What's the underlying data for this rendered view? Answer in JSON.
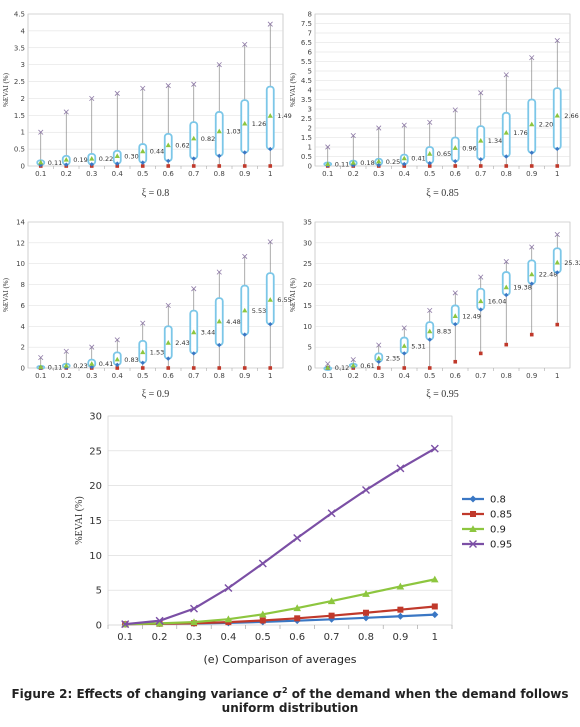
{
  "figure_caption_line1": "Figure 2: Effects of changing variance σ",
  "figure_caption_sup": "2",
  "figure_caption_line1_end": " of the demand when the demand follows",
  "figure_caption_line2": "uniform distribution",
  "colors": {
    "series_0_8": "#3a77c4",
    "series_0_85": "#c0392b",
    "series_0_9": "#8dc63f",
    "series_0_95": "#7b4fa5",
    "box_edge": "#7cc7e8",
    "whisker": "#888888",
    "max_marker": "#8e7aa6"
  },
  "chart_data": [
    {
      "type": "box",
      "subtitle": "ξ = 0.8",
      "ylabel": "%EVAI (%)",
      "categories": [
        "0.1",
        "0.2",
        "0.3",
        "0.4",
        "0.5",
        "0.6",
        "0.7",
        "0.8",
        "0.9",
        "1"
      ],
      "ylim": [
        0,
        4.5
      ],
      "yticks": [
        "0",
        "0.5",
        "1",
        "1.5",
        "2",
        "2.5",
        "3",
        "3.5",
        "4",
        "4.5"
      ],
      "min": [
        0,
        0,
        0,
        0,
        0,
        0,
        0,
        0,
        0,
        0
      ],
      "q1": [
        0.03,
        0.04,
        0.05,
        0.07,
        0.1,
        0.15,
        0.22,
        0.3,
        0.4,
        0.5
      ],
      "mean": [
        0.11,
        0.19,
        0.22,
        0.3,
        0.44,
        0.62,
        0.82,
        1.03,
        1.26,
        1.49
      ],
      "q3": [
        0.17,
        0.3,
        0.36,
        0.45,
        0.65,
        0.95,
        1.3,
        1.6,
        1.95,
        2.35
      ],
      "max": [
        1.0,
        1.6,
        2.0,
        2.15,
        2.3,
        2.38,
        2.42,
        3.0,
        3.6,
        4.2
      ],
      "mean_labels": [
        "0.11",
        "0.19",
        "0.22",
        "0.30",
        "0.44",
        "0.62",
        "0.82",
        "1.03",
        "1.26",
        "1.49"
      ]
    },
    {
      "type": "box",
      "subtitle": "ξ = 0.85",
      "ylabel": "%EVAI (%)",
      "categories": [
        "0.1",
        "0.2",
        "0.3",
        "0.4",
        "0.5",
        "0.6",
        "0.7",
        "0.8",
        "0.9",
        "1"
      ],
      "ylim": [
        0,
        8
      ],
      "yticks": [
        "0",
        "0.5",
        "1",
        "1.5",
        "2",
        "2.5",
        "3",
        "3.5",
        "4",
        "4.5",
        "5",
        "5.5",
        "6",
        "6.5",
        "7",
        "7.5",
        "8"
      ],
      "min": [
        0,
        0,
        0,
        0,
        0,
        0,
        0,
        0,
        0,
        0
      ],
      "q1": [
        0.03,
        0.04,
        0.05,
        0.1,
        0.15,
        0.25,
        0.35,
        0.5,
        0.7,
        0.9
      ],
      "mean": [
        0.11,
        0.18,
        0.25,
        0.41,
        0.65,
        0.96,
        1.34,
        1.76,
        2.2,
        2.66
      ],
      "q3": [
        0.18,
        0.28,
        0.38,
        0.6,
        1.0,
        1.5,
        2.1,
        2.8,
        3.5,
        4.1
      ],
      "max": [
        1.0,
        1.6,
        2.0,
        2.15,
        2.3,
        2.95,
        3.85,
        4.8,
        5.7,
        6.6
      ],
      "mean_labels": [
        "0.11",
        "0.18",
        "0.25",
        "0.41",
        "0.65",
        "0.96",
        "1.34",
        "1.76",
        "2.20",
        "2.66"
      ]
    },
    {
      "type": "box",
      "subtitle": "ξ = 0.9",
      "ylabel": "%EVAI (%)",
      "categories": [
        "0.1",
        "0.2",
        "0.3",
        "0.4",
        "0.5",
        "0.6",
        "0.7",
        "0.8",
        "0.9",
        "1"
      ],
      "ylim": [
        0,
        14
      ],
      "yticks": [
        "0",
        "2",
        "4",
        "6",
        "8",
        "10",
        "12",
        "14"
      ],
      "min": [
        0,
        0,
        0,
        0,
        0,
        0,
        0,
        0,
        0,
        0
      ],
      "q1": [
        0.02,
        0.03,
        0.1,
        0.3,
        0.5,
        0.9,
        1.4,
        2.2,
        3.2,
        4.2
      ],
      "mean": [
        0.11,
        0.23,
        0.41,
        0.83,
        1.53,
        2.43,
        3.44,
        4.48,
        5.53,
        6.55
      ],
      "q3": [
        0.2,
        0.4,
        0.8,
        1.5,
        2.6,
        4.0,
        5.5,
        6.7,
        7.9,
        9.1
      ],
      "max": [
        1.0,
        1.6,
        2.0,
        2.7,
        4.3,
        6.0,
        7.6,
        9.2,
        10.7,
        12.1
      ],
      "mean_labels": [
        "0.11",
        "0.23",
        "0.41",
        "0.83",
        "1.53",
        "2.43",
        "3.44",
        "4.48",
        "5.53",
        "6.55"
      ]
    },
    {
      "type": "box",
      "subtitle": "ξ = 0.95",
      "ylabel": "%EVAI (%)",
      "categories": [
        "0.1",
        "0.2",
        "0.3",
        "0.4",
        "0.5",
        "0.6",
        "0.7",
        "0.8",
        "0.9",
        "1"
      ],
      "ylim": [
        0,
        35
      ],
      "yticks": [
        "0",
        "5",
        "10",
        "15",
        "20",
        "25",
        "30",
        "35"
      ],
      "min": [
        0,
        0,
        0,
        0,
        0,
        1.5,
        3.5,
        5.6,
        8.0,
        10.4
      ],
      "q1": [
        0.05,
        0.3,
        1.5,
        3.5,
        6.8,
        10.5,
        14.0,
        17.5,
        20.2,
        22.9
      ],
      "mean": [
        0.12,
        0.61,
        2.35,
        5.31,
        8.83,
        12.49,
        16.04,
        19.38,
        22.48,
        25.32
      ],
      "q3": [
        0.25,
        1.0,
        3.5,
        7.3,
        11.0,
        15.0,
        19.0,
        23.0,
        25.8,
        28.7
      ],
      "max": [
        1.0,
        2.0,
        5.5,
        9.6,
        13.8,
        18.0,
        21.8,
        25.5,
        29.0,
        32.0
      ],
      "mean_labels": [
        "0.12",
        "0.61",
        "2.35",
        "5.31",
        "8.83",
        "12.49",
        "16.04",
        "19.38",
        "22.48",
        "25.32"
      ]
    },
    {
      "type": "line",
      "subtitle": "(e) Comparison of averages",
      "ylabel": "%EVAI (%)",
      "x": [
        "0.1",
        "0.2",
        "0.3",
        "0.4",
        "0.5",
        "0.6",
        "0.7",
        "0.8",
        "0.9",
        "1"
      ],
      "ylim": [
        0,
        30
      ],
      "yticks": [
        "0",
        "5",
        "10",
        "15",
        "20",
        "25",
        "30"
      ],
      "legend_position": "right",
      "series": [
        {
          "name": "0.8",
          "marker": "diamond",
          "values": [
            0.11,
            0.19,
            0.22,
            0.3,
            0.44,
            0.62,
            0.82,
            1.03,
            1.26,
            1.49
          ]
        },
        {
          "name": "0.85",
          "marker": "square",
          "values": [
            0.11,
            0.18,
            0.25,
            0.41,
            0.65,
            0.96,
            1.34,
            1.76,
            2.2,
            2.66
          ]
        },
        {
          "name": "0.9",
          "marker": "triangle",
          "values": [
            0.11,
            0.23,
            0.41,
            0.83,
            1.53,
            2.43,
            3.44,
            4.48,
            5.53,
            6.55
          ]
        },
        {
          "name": "0.95",
          "marker": "x",
          "values": [
            0.12,
            0.61,
            2.35,
            5.31,
            8.83,
            12.49,
            16.04,
            19.38,
            22.48,
            25.32
          ]
        }
      ]
    }
  ]
}
